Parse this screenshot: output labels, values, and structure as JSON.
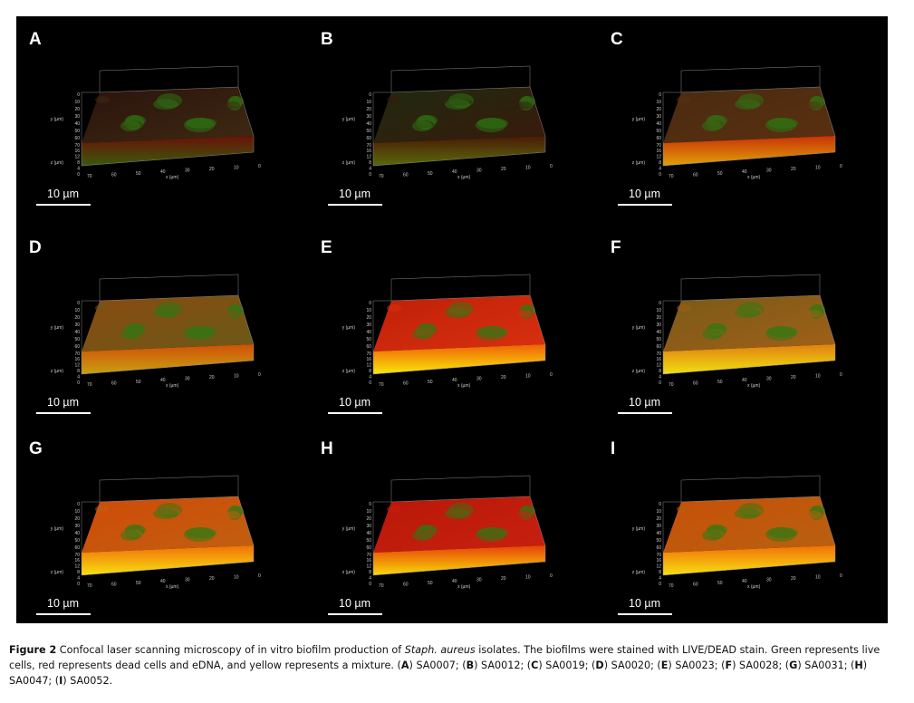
{
  "figure": {
    "panels": [
      {
        "label": "A",
        "scale_bar": "10 µm"
      },
      {
        "label": "B",
        "scale_bar": "10 µm"
      },
      {
        "label": "C",
        "scale_bar": "10 µm"
      },
      {
        "label": "D",
        "scale_bar": "10 µm"
      },
      {
        "label": "E",
        "scale_bar": "10 µm"
      },
      {
        "label": "F",
        "scale_bar": "10 µm"
      },
      {
        "label": "G",
        "scale_bar": "10 µm"
      },
      {
        "label": "H",
        "scale_bar": "10 µm"
      },
      {
        "label": "I",
        "scale_bar": "10 µm"
      }
    ],
    "axes": {
      "y_label": "y (µm)",
      "z_label": "z (µm)",
      "x_label": "x (µm)",
      "y_ticks": [
        "0",
        "10",
        "20",
        "30",
        "40",
        "50",
        "60",
        "70"
      ],
      "z_ticks": [
        "16",
        "12",
        "8",
        "4",
        "0"
      ],
      "x_ticks": [
        "70",
        "60",
        "50",
        "40",
        "30",
        "20",
        "10",
        "0"
      ]
    }
  },
  "caption": [
    {
      "text": "Figure 2",
      "style": "bold"
    },
    {
      "text": " Confocal laser scanning microscopy of in vitro biofilm production of ",
      "style": "normal"
    },
    {
      "text": "Staph. aureus",
      "style": "italic"
    },
    {
      "text": " isolates. The biofilms were stained with LIVE/DEAD stain. Green represents live cells, red represents dead cells and eDNA, and yellow represents a mixture. (",
      "style": "normal"
    },
    {
      "text": "A",
      "style": "bold"
    },
    {
      "text": ") SA0007; (",
      "style": "normal"
    },
    {
      "text": "B",
      "style": "bold"
    },
    {
      "text": ") SA0012; (",
      "style": "normal"
    },
    {
      "text": "C",
      "style": "bold"
    },
    {
      "text": ") SA0019; (",
      "style": "normal"
    },
    {
      "text": "D",
      "style": "bold"
    },
    {
      "text": ") SA0020; (",
      "style": "normal"
    },
    {
      "text": "E",
      "style": "bold"
    },
    {
      "text": ") SA0023; (",
      "style": "normal"
    },
    {
      "text": "F",
      "style": "bold"
    },
    {
      "text": ") SA0028; (",
      "style": "normal"
    },
    {
      "text": "G",
      "style": "bold"
    },
    {
      "text": ") SA0031; (",
      "style": "normal"
    },
    {
      "text": "H",
      "style": "bold"
    },
    {
      "text": ") SA0047; (",
      "style": "normal"
    },
    {
      "text": "I",
      "style": "bold"
    },
    {
      "text": ") SA0052.",
      "style": "normal"
    }
  ]
}
